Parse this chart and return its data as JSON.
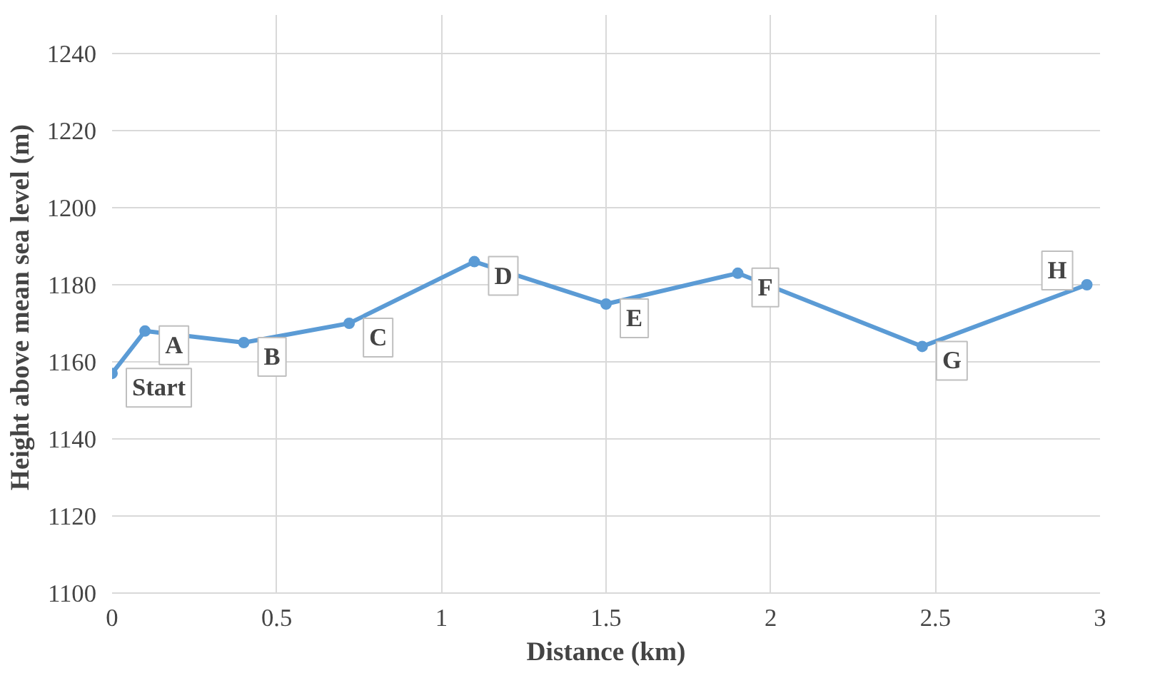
{
  "chart_data": {
    "type": "line",
    "xlabel": "Distance (km)",
    "ylabel": "Height above mean sea level  (m)",
    "x": [
      0,
      0.1,
      0.4,
      0.72,
      1.1,
      1.5,
      1.9,
      2.46,
      2.96
    ],
    "series": [
      {
        "color": "#5b9bd5",
        "values": [
          1157,
          1168,
          1165,
          1170,
          1186,
          1175,
          1183,
          1164,
          1180
        ]
      }
    ],
    "annotations": [
      {
        "text": "Start",
        "x": 0,
        "y": 1157
      },
      {
        "text": "A",
        "x": 0.1,
        "y": 1168
      },
      {
        "text": "B",
        "x": 0.4,
        "y": 1165
      },
      {
        "text": "C",
        "x": 0.72,
        "y": 1170
      },
      {
        "text": "D",
        "x": 1.1,
        "y": 1186
      },
      {
        "text": "E",
        "x": 1.5,
        "y": 1175
      },
      {
        "text": "F",
        "x": 1.9,
        "y": 1183
      },
      {
        "text": "G",
        "x": 2.46,
        "y": 1164
      },
      {
        "text": "H",
        "x": 2.96,
        "y": 1180
      }
    ],
    "xlim": [
      0,
      3
    ],
    "ylim": [
      1100,
      1250
    ],
    "xticks": [
      0,
      {
        "value": 0.5,
        "label": "0.5"
      },
      1,
      {
        "value": 1.5,
        "label": "1.5"
      },
      2,
      {
        "value": 2.5,
        "label": "2.5"
      },
      3
    ],
    "yticks": [
      1100,
      1120,
      1140,
      1160,
      1180,
      1200,
      1220,
      1240
    ],
    "grid": true,
    "marker": "circle",
    "line_style": "solid"
  }
}
